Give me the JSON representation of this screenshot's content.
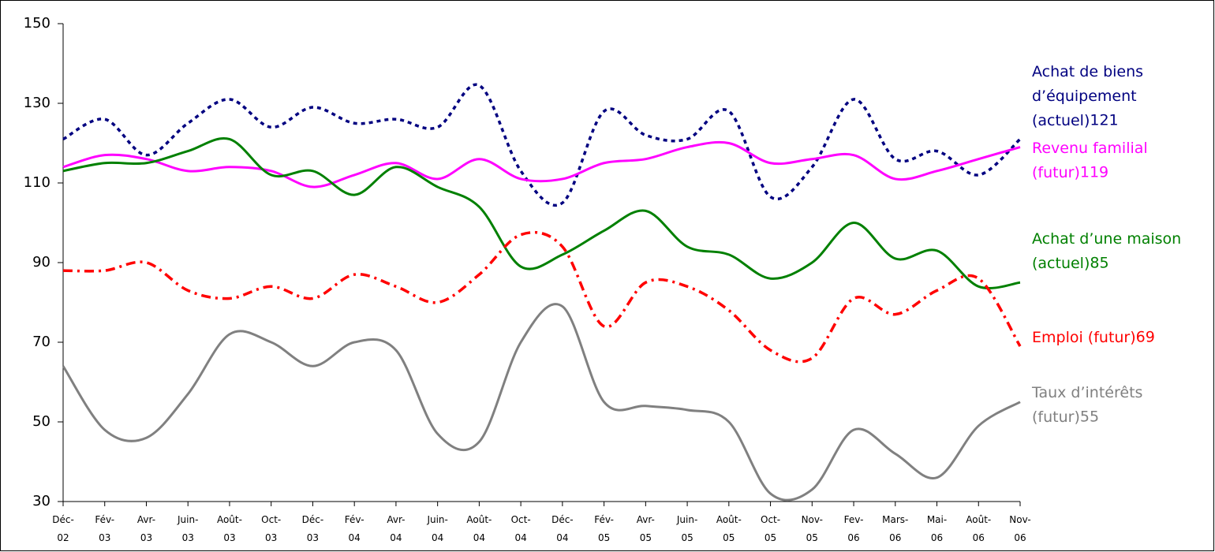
{
  "chart_data": {
    "type": "line",
    "categories": [
      "Déc-02",
      "Fév-03",
      "Avr-03",
      "Juin-03",
      "Août-03",
      "Oct-03",
      "Déc-03",
      "Fév-04",
      "Avr-04",
      "Juin-04",
      "Août-04",
      "Oct-04",
      "Déc-04",
      "Fév-05",
      "Avr-05",
      "Juin-05",
      "Août-05",
      "Oct-05",
      "Nov-05",
      "Fev-06",
      "Mars-06",
      "Mai-06",
      "Août-06",
      "Nov-06"
    ],
    "series": [
      {
        "name": "Achat de biens d’équipement (actuel)",
        "color": "#000080",
        "style": "dotted",
        "values": [
          121,
          126,
          117,
          125,
          131,
          124,
          129,
          125,
          126,
          124,
          134.5,
          113,
          105,
          128,
          122,
          121,
          128,
          106.5,
          114,
          131,
          116,
          118,
          112,
          121
        ]
      },
      {
        "name": "Revenu familial (futur)",
        "color": "#ff00ff",
        "style": "solid",
        "values": [
          114,
          117,
          116,
          113,
          114,
          113,
          109,
          112,
          115,
          111,
          116,
          111,
          111,
          115,
          116,
          119,
          120,
          115,
          116,
          117,
          111,
          113,
          116,
          119
        ]
      },
      {
        "name": "Achat d’une maison (actuel)",
        "color": "#008000",
        "style": "solid",
        "values": [
          113,
          115,
          115,
          118,
          121,
          112,
          113,
          107,
          114,
          109,
          104,
          89,
          92,
          98,
          103,
          94,
          92,
          86,
          90,
          100,
          91,
          93,
          84,
          85
        ]
      },
      {
        "name": "Emploi (futur)",
        "color": "#ff0000",
        "style": "dashdot",
        "values": [
          88,
          88,
          90,
          83,
          81,
          84,
          81,
          87,
          84,
          80,
          87,
          97,
          94,
          74,
          85,
          84,
          78,
          68,
          66,
          81,
          77,
          83,
          86,
          69
        ]
      },
      {
        "name": "Taux d’intérêts (futur)",
        "color": "#808080",
        "style": "solid",
        "values": [
          64,
          48,
          46,
          57,
          72,
          70,
          64,
          70,
          68,
          47,
          45,
          70,
          79,
          55,
          54,
          53,
          50,
          32,
          33,
          48,
          42,
          36,
          49,
          55
        ]
      }
    ],
    "ylim": [
      30,
      150
    ],
    "yticks": [
      30,
      50,
      70,
      90,
      110,
      130,
      150
    ],
    "grid": false
  }
}
